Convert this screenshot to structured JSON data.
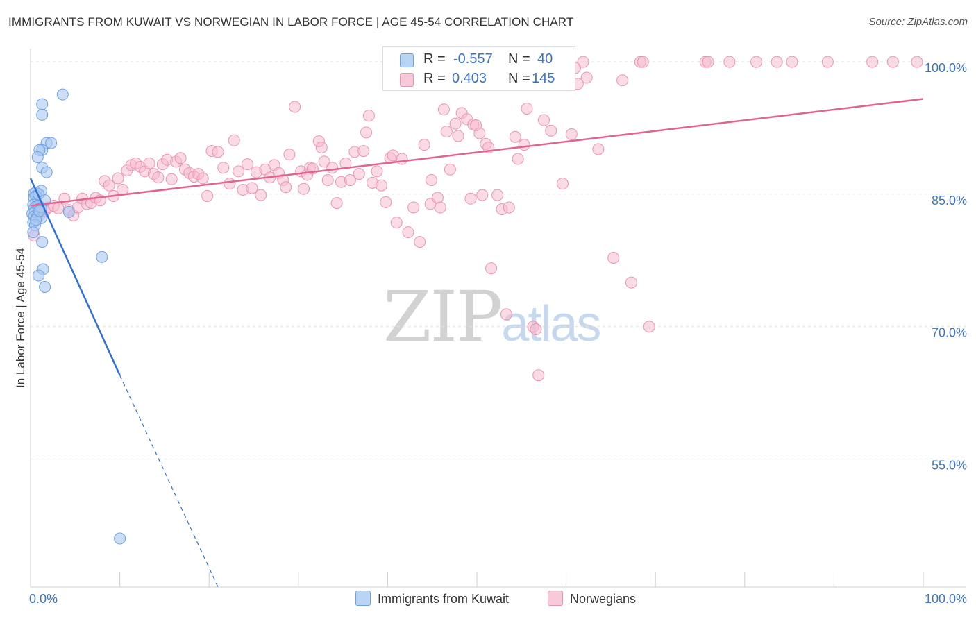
{
  "title": "IMMIGRANTS FROM KUWAIT VS NORWEGIAN IN LABOR FORCE | AGE 45-54 CORRELATION CHART",
  "source": "Source: ZipAtlas.com",
  "watermark": {
    "zip": "ZIP",
    "atlas": "atlas"
  },
  "legend": {
    "rows": [
      {
        "r_label": "R =",
        "r_value": "-0.557",
        "n_label": "N =",
        "n_value": "40"
      },
      {
        "r_label": "R =",
        "r_value": "0.403",
        "n_label": "N =",
        "n_value": "145"
      }
    ]
  },
  "bottom_legend": [
    "Immigrants from Kuwait",
    "Norwegians"
  ],
  "colors": {
    "kuwait_fill": "#a8c8f0",
    "kuwait_stroke": "#6fa0e0",
    "kuwait_line": "#2e6fd6",
    "norway_fill": "#f6bccf",
    "norway_stroke": "#eb93b1",
    "norway_line": "#e0648f",
    "tick_label": "#3a73c8",
    "grid": "#e4e4e4"
  },
  "chart_data": {
    "type": "scatter",
    "title": "IMMIGRANTS FROM KUWAIT VS NORWEGIAN IN LABOR FORCE | AGE 45-54 CORRELATION CHART",
    "xlabel": "",
    "ylabel": "In Labor Force | Age 45-54",
    "xlim": [
      0,
      100
    ],
    "ylim": [
      40.5,
      101.5
    ],
    "x_tick_labels": [
      {
        "x": 0,
        "label": "0.0%"
      },
      {
        "x": 100,
        "label": "100.0%"
      }
    ],
    "y_ticks": [
      {
        "y": 55,
        "label": "55.0%"
      },
      {
        "y": 70,
        "label": "70.0%"
      },
      {
        "y": 85,
        "label": "85.0%"
      },
      {
        "y": 100,
        "label": "100.0%"
      }
    ],
    "x_minor_ticks": [
      0,
      10,
      20,
      30,
      40,
      50,
      60,
      70,
      80,
      90,
      100
    ],
    "series": [
      {
        "name": "Immigrants from Kuwait",
        "R": -0.557,
        "N": 40,
        "trend": {
          "x0": 0.0,
          "y0": 86.8,
          "x1": 10.0,
          "y1": 64.5,
          "dash_x1": 21.0,
          "dash_y1": 40.5
        },
        "points": [
          [
            3.6,
            96.3
          ],
          [
            1.3,
            95.2
          ],
          [
            1.3,
            94.0
          ],
          [
            1.8,
            90.8
          ],
          [
            2.3,
            90.8
          ],
          [
            1.3,
            90.0
          ],
          [
            1.0,
            90.0
          ],
          [
            0.8,
            89.2
          ],
          [
            1.3,
            88.0
          ],
          [
            1.8,
            87.5
          ],
          [
            0.4,
            85.1
          ],
          [
            0.6,
            85.2
          ],
          [
            1.2,
            85.4
          ],
          [
            0.4,
            84.6
          ],
          [
            0.6,
            84.8
          ],
          [
            0.9,
            85.0
          ],
          [
            1.6,
            84.3
          ],
          [
            0.3,
            83.8
          ],
          [
            0.6,
            83.6
          ],
          [
            0.9,
            83.7
          ],
          [
            0.4,
            83.4
          ],
          [
            0.5,
            83.0
          ],
          [
            0.9,
            83.3
          ],
          [
            1.2,
            83.4
          ],
          [
            0.2,
            82.8
          ],
          [
            0.4,
            82.5
          ],
          [
            0.7,
            82.4
          ],
          [
            1.2,
            82.3
          ],
          [
            4.3,
            83.0
          ],
          [
            0.3,
            81.8
          ],
          [
            0.5,
            81.5
          ],
          [
            0.3,
            80.7
          ],
          [
            1.3,
            79.6
          ],
          [
            1.4,
            76.5
          ],
          [
            0.9,
            75.8
          ],
          [
            1.6,
            74.5
          ],
          [
            8.0,
            77.9
          ],
          [
            10.0,
            46.0
          ],
          [
            0.6,
            82.1
          ],
          [
            1.0,
            83.1
          ]
        ]
      },
      {
        "name": "Norwegians",
        "R": 0.403,
        "N": 145,
        "trend": {
          "x0": 0.0,
          "y0": 83.7,
          "x1": 100.0,
          "y1": 95.8
        },
        "points": [
          [
            0.4,
            80.3
          ],
          [
            1.0,
            82.6
          ],
          [
            1.6,
            83.1
          ],
          [
            2.0,
            83.5
          ],
          [
            2.6,
            83.7
          ],
          [
            3.1,
            83.4
          ],
          [
            3.8,
            84.5
          ],
          [
            4.3,
            83.2
          ],
          [
            4.8,
            82.6
          ],
          [
            5.3,
            83.5
          ],
          [
            5.8,
            84.5
          ],
          [
            6.3,
            83.9
          ],
          [
            6.8,
            84.0
          ],
          [
            7.3,
            84.6
          ],
          [
            7.8,
            84.3
          ],
          [
            8.3,
            86.5
          ],
          [
            8.8,
            86.0
          ],
          [
            9.3,
            84.8
          ],
          [
            9.8,
            86.8
          ],
          [
            10.3,
            85.5
          ],
          [
            10.8,
            87.7
          ],
          [
            11.3,
            88.3
          ],
          [
            11.8,
            88.5
          ],
          [
            12.3,
            88.1
          ],
          [
            12.8,
            87.6
          ],
          [
            13.3,
            88.5
          ],
          [
            13.8,
            87.3
          ],
          [
            14.3,
            86.9
          ],
          [
            14.8,
            88.4
          ],
          [
            15.3,
            88.9
          ],
          [
            15.8,
            86.7
          ],
          [
            16.3,
            88.7
          ],
          [
            16.8,
            89.1
          ],
          [
            17.3,
            87.8
          ],
          [
            17.8,
            87.4
          ],
          [
            18.3,
            87.0
          ],
          [
            18.8,
            87.3
          ],
          [
            19.3,
            86.8
          ],
          [
            19.8,
            84.8
          ],
          [
            20.3,
            89.9
          ],
          [
            21.0,
            89.8
          ],
          [
            21.6,
            88.0
          ],
          [
            22.3,
            86.2
          ],
          [
            22.8,
            91.1
          ],
          [
            23.3,
            87.6
          ],
          [
            23.8,
            85.5
          ],
          [
            24.3,
            88.4
          ],
          [
            24.8,
            85.7
          ],
          [
            25.3,
            87.5
          ],
          [
            25.8,
            84.9
          ],
          [
            26.3,
            87.8
          ],
          [
            26.8,
            86.9
          ],
          [
            27.3,
            88.3
          ],
          [
            27.8,
            87.4
          ],
          [
            28.3,
            86.6
          ],
          [
            28.6,
            85.8
          ],
          [
            29.0,
            89.5
          ],
          [
            29.6,
            94.9
          ],
          [
            30.3,
            87.6
          ],
          [
            30.6,
            85.6
          ],
          [
            31.0,
            87.2
          ],
          [
            31.3,
            88.0
          ],
          [
            31.6,
            87.9
          ],
          [
            32.3,
            91.0
          ],
          [
            32.6,
            90.3
          ],
          [
            32.9,
            88.7
          ],
          [
            33.3,
            86.6
          ],
          [
            33.8,
            88.0
          ],
          [
            34.3,
            84.0
          ],
          [
            34.8,
            86.4
          ],
          [
            35.3,
            88.5
          ],
          [
            35.8,
            86.6
          ],
          [
            36.3,
            89.8
          ],
          [
            36.8,
            87.3
          ],
          [
            37.3,
            89.9
          ],
          [
            37.6,
            92.0
          ],
          [
            37.9,
            93.9
          ],
          [
            38.3,
            86.3
          ],
          [
            38.8,
            87.6
          ],
          [
            39.3,
            86.0
          ],
          [
            39.8,
            84.1
          ],
          [
            40.3,
            89.1
          ],
          [
            40.6,
            89.4
          ],
          [
            41.0,
            81.8
          ],
          [
            41.6,
            89.0
          ],
          [
            42.3,
            80.7
          ],
          [
            42.9,
            83.5
          ],
          [
            43.6,
            79.6
          ],
          [
            44.1,
            90.6
          ],
          [
            44.8,
            83.9
          ],
          [
            44.9,
            86.6
          ],
          [
            45.6,
            84.6
          ],
          [
            45.9,
            83.5
          ],
          [
            46.3,
            94.6
          ],
          [
            46.6,
            92.1
          ],
          [
            47.0,
            87.8
          ],
          [
            47.6,
            93.0
          ],
          [
            47.9,
            91.6
          ],
          [
            48.3,
            94.2
          ],
          [
            48.9,
            93.5
          ],
          [
            49.3,
            84.5
          ],
          [
            49.6,
            92.9
          ],
          [
            49.9,
            92.8
          ],
          [
            50.3,
            91.9
          ],
          [
            50.6,
            84.9
          ],
          [
            51.0,
            90.7
          ],
          [
            51.3,
            90.3
          ],
          [
            51.6,
            76.6
          ],
          [
            52.3,
            84.9
          ],
          [
            52.8,
            83.3
          ],
          [
            53.3,
            71.4
          ],
          [
            53.6,
            83.5
          ],
          [
            54.3,
            91.5
          ],
          [
            54.6,
            89.0
          ],
          [
            55.3,
            90.6
          ],
          [
            55.6,
            94.7
          ],
          [
            56.3,
            70.0
          ],
          [
            56.6,
            69.7
          ],
          [
            56.9,
            64.5
          ],
          [
            57.0,
            99.0
          ],
          [
            57.8,
            100.0
          ],
          [
            58.3,
            92.2
          ],
          [
            58.8,
            100.0
          ],
          [
            59.6,
            86.2
          ],
          [
            60.3,
            100.0
          ],
          [
            60.6,
            91.8
          ],
          [
            61.3,
            97.5
          ],
          [
            61.9,
            100.0
          ],
          [
            62.3,
            98.2
          ],
          [
            63.6,
            90.1
          ],
          [
            65.3,
            77.8
          ],
          [
            66.3,
            97.9
          ],
          [
            67.3,
            75.0
          ],
          [
            68.3,
            100.0
          ],
          [
            68.6,
            100.0
          ],
          [
            69.3,
            70.0
          ],
          [
            75.6,
            100.0
          ],
          [
            75.9,
            100.0
          ],
          [
            78.3,
            100.0
          ],
          [
            81.3,
            100.0
          ],
          [
            83.6,
            100.0
          ],
          [
            85.3,
            100.0
          ],
          [
            89.3,
            100.0
          ],
          [
            94.3,
            100.0
          ],
          [
            96.6,
            100.0
          ],
          [
            99.3,
            100.0
          ],
          [
            60.0,
            99.0
          ],
          [
            61.0,
            99.3
          ],
          [
            57.5,
            93.4
          ]
        ]
      }
    ]
  }
}
